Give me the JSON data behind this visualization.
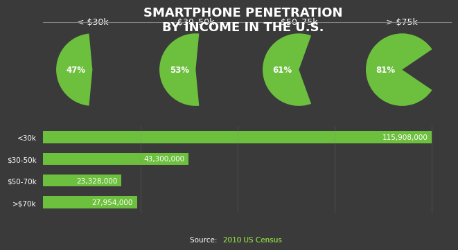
{
  "title": "SMARTPHONE PENETRATION\nBY INCOME IN THE U.S.",
  "title_fontsize": 13,
  "background_color": "#3a3a3a",
  "pie_categories": [
    "< $30k",
    "$30–50k",
    "$50–75k",
    "> $75k"
  ],
  "pie_percentages": [
    47,
    53,
    61,
    81
  ],
  "green_color": "#6dbf3e",
  "bar_categories": [
    "<30k",
    "$30-50k",
    "$50-70k",
    ">$70k"
  ],
  "bar_values": [
    115908000,
    43300000,
    23328000,
    27954000
  ],
  "bar_labels": [
    "115,908,000",
    "43,300,000",
    "23,328,000",
    "27,954,000"
  ],
  "text_color": "#ffffff",
  "source_text": "Source: ",
  "source_link": "2010 US Census",
  "label_fontsize": 8.5,
  "bar_label_fontsize": 7.5,
  "category_label_fontsize": 9
}
